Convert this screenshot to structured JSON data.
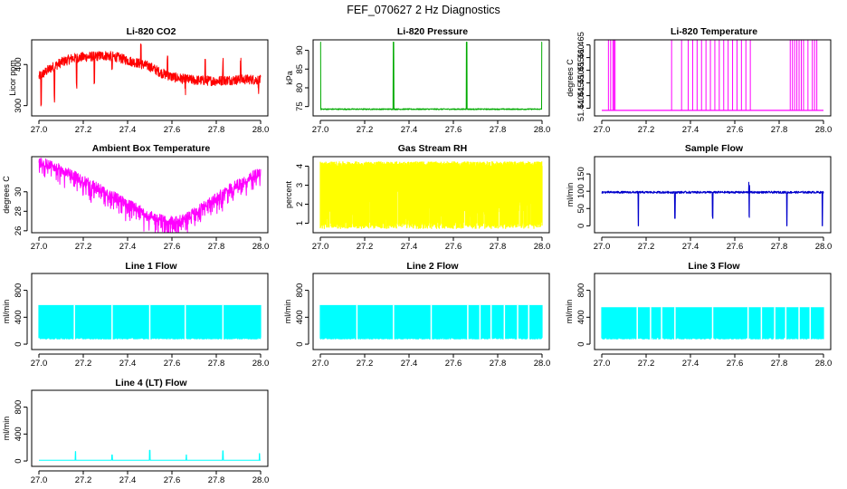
{
  "figure": {
    "title": "FEF_070627  2 Hz Diagnostics"
  },
  "chart_data": [
    {
      "id": "co2",
      "type": "line",
      "title": "Li-820 CO2",
      "ylabel": "Licor ppm",
      "color": "#ff0000",
      "xlim": [
        27.0,
        28.0
      ],
      "ylim": [
        275,
        460
      ],
      "x_ticks": [
        "27.0",
        "27.2",
        "27.4",
        "27.6",
        "27.8",
        "28.0"
      ],
      "y_ticks": [
        {
          "value": 300,
          "label": "300"
        },
        {
          "value": 400,
          "label": "400"
        }
      ],
      "series": [
        {
          "name": "CO2",
          "x": [
            27.0,
            27.05,
            27.1,
            27.15,
            27.2,
            27.25,
            27.3,
            27.35,
            27.4,
            27.45,
            27.5,
            27.55,
            27.6,
            27.65,
            27.7,
            27.75,
            27.8,
            27.85,
            27.9,
            27.95,
            28.0
          ],
          "y": [
            370,
            390,
            405,
            415,
            418,
            420,
            422,
            418,
            410,
            403,
            395,
            380,
            370,
            365,
            362,
            361,
            360,
            362,
            363,
            364,
            362
          ],
          "noise": 12,
          "spikes_up": [
            27.33,
            27.46,
            27.58,
            27.66,
            27.75,
            27.83,
            27.91,
            27.99
          ],
          "spikes_down": [
            27.01,
            27.07,
            27.17,
            27.25,
            27.33,
            27.66,
            27.99
          ]
        }
      ]
    },
    {
      "id": "pressure",
      "type": "line",
      "title": "Li-820 Pressure",
      "ylabel": "kPa",
      "color": "#00aa00",
      "xlim": [
        27.0,
        28.0
      ],
      "ylim": [
        72.5,
        92.8
      ],
      "x_ticks": [
        "27.0",
        "27.2",
        "27.4",
        "27.6",
        "27.8",
        "28.0"
      ],
      "y_ticks": [
        {
          "value": 75,
          "label": "75"
        },
        {
          "value": 80,
          "label": "80"
        },
        {
          "value": 85,
          "label": "85"
        },
        {
          "value": 90,
          "label": "90"
        }
      ],
      "series": [
        {
          "name": "Pressure",
          "x": [
            27.0,
            28.0
          ],
          "y": [
            74.3,
            74.3
          ],
          "noise": 0.15,
          "spikes_up": [
            27.0,
            27.33,
            27.66,
            28.0
          ],
          "spike_top": 92.2
        }
      ]
    },
    {
      "id": "licor_temp",
      "type": "line",
      "title": "Li-820 Temperature",
      "ylabel": "degrees C",
      "color": "#ff00ff",
      "xlim": [
        27.0,
        28.0
      ],
      "ylim": [
        51.437,
        51.467
      ],
      "x_ticks": [
        "27.0",
        "27.2",
        "27.4",
        "27.6",
        "27.8",
        "28.0"
      ],
      "y_ticks": [
        {
          "value": 51.44,
          "label": "51.440"
        },
        {
          "value": 51.445,
          "label": "51.445"
        },
        {
          "value": 51.45,
          "label": "51.450"
        },
        {
          "value": 51.455,
          "label": "51.455"
        },
        {
          "value": 51.46,
          "label": "51.460"
        },
        {
          "value": 51.465,
          "label": "51.465"
        }
      ],
      "series": [
        {
          "name": "Temperature",
          "x": [
            27.0,
            28.0
          ],
          "y": [
            51.4392,
            51.4392
          ],
          "noise": 0,
          "toggles": [
            27.03,
            27.04,
            27.05,
            27.055,
            27.06,
            27.315,
            27.36,
            27.39,
            27.41,
            27.43,
            27.45,
            27.47,
            27.49,
            27.51,
            27.53,
            27.55,
            27.57,
            27.59,
            27.61,
            27.63,
            27.65,
            27.67,
            27.85,
            27.86,
            27.87,
            27.88,
            27.89,
            27.9,
            27.91,
            27.93,
            27.95,
            27.96,
            27.97
          ],
          "toggle_top": 51.467
        }
      ]
    },
    {
      "id": "box_temp",
      "type": "line",
      "title": "Ambient Box Temperature",
      "ylabel": "degrees C",
      "color": "#ff00ff",
      "xlim": [
        27.0,
        28.0
      ],
      "ylim": [
        25.8,
        33.6
      ],
      "x_ticks": [
        "27.0",
        "27.2",
        "27.4",
        "27.6",
        "27.8",
        "28.0"
      ],
      "y_ticks": [
        {
          "value": 26,
          "label": "26"
        },
        {
          "value": 28,
          "label": "28"
        },
        {
          "value": 30,
          "label": "30"
        }
      ],
      "series": [
        {
          "name": "Box Temperature",
          "x": [
            27.0,
            27.05,
            27.1,
            27.15,
            27.2,
            27.25,
            27.3,
            27.35,
            27.4,
            27.45,
            27.5,
            27.55,
            27.6,
            27.65,
            27.7,
            27.75,
            27.8,
            27.85,
            27.9,
            27.95,
            28.0
          ],
          "y": [
            33.0,
            32.8,
            32.3,
            31.8,
            31.2,
            30.6,
            30.0,
            29.4,
            28.8,
            28.2,
            27.6,
            27.2,
            27.0,
            27.2,
            27.9,
            28.6,
            29.4,
            30.2,
            30.9,
            31.5,
            32.0
          ],
          "noise": 0.5,
          "dips": 1.5
        }
      ]
    },
    {
      "id": "rh",
      "type": "line",
      "title": "Gas Stream RH",
      "ylabel": "percent",
      "color": "#ffff00",
      "xlim": [
        27.0,
        28.0
      ],
      "ylim": [
        0.5,
        4.5
      ],
      "x_ticks": [
        "27.0",
        "27.2",
        "27.4",
        "27.6",
        "27.8",
        "28.0"
      ],
      "y_ticks": [
        {
          "value": 1,
          "label": "1"
        },
        {
          "value": 2,
          "label": "2"
        },
        {
          "value": 3,
          "label": "3"
        },
        {
          "value": 4,
          "label": "4"
        }
      ],
      "series": [
        {
          "name": "RH",
          "x": [
            27.0,
            28.0
          ],
          "y": [
            4.1,
            4.1
          ],
          "noise": 0.15,
          "band_low": 0.7
        }
      ]
    },
    {
      "id": "sample_flow",
      "type": "line",
      "title": "Sample Flow",
      "ylabel": "ml/min",
      "color": "#0000cc",
      "xlim": [
        27.0,
        28.0
      ],
      "ylim": [
        -20,
        200
      ],
      "x_ticks": [
        "27.0",
        "27.2",
        "27.4",
        "27.6",
        "27.8",
        "28.0"
      ],
      "y_ticks": [
        {
          "value": 0,
          "label": "0"
        },
        {
          "value": 50,
          "label": "50"
        },
        {
          "value": 100,
          "label": "100"
        },
        {
          "value": 150,
          "label": "150"
        }
      ],
      "series": [
        {
          "name": "Sample Flow",
          "x": [
            27.0,
            28.0
          ],
          "y": [
            97,
            97
          ],
          "noise": 3,
          "drops": [
            27.165,
            27.33,
            27.5,
            27.665,
            27.835,
            27.995
          ],
          "drop_low": 0,
          "blips": [
            27.33,
            27.5,
            27.665
          ]
        }
      ]
    },
    {
      "id": "line1",
      "type": "line",
      "title": "Line 1 Flow",
      "ylabel": "ml/min",
      "color": "#00ffff",
      "xlim": [
        27.0,
        28.0
      ],
      "ylim": [
        -80,
        1050
      ],
      "x_ticks": [
        "27.0",
        "27.2",
        "27.4",
        "27.6",
        "27.8",
        "28.0"
      ],
      "y_ticks": [
        {
          "value": 0,
          "label": "0"
        },
        {
          "value": 400,
          "label": "400"
        },
        {
          "value": 800,
          "label": "800"
        }
      ],
      "series": [
        {
          "name": "Line 1 Flow",
          "x": [
            27.0,
            28.0
          ],
          "y": [
            580,
            580
          ],
          "band_low": 70,
          "gaps": [
            27.16,
            27.33,
            27.5,
            27.66,
            27.83
          ]
        }
      ]
    },
    {
      "id": "line2",
      "type": "line",
      "title": "Line 2 Flow",
      "ylabel": "ml/min",
      "color": "#00ffff",
      "xlim": [
        27.0,
        28.0
      ],
      "ylim": [
        -80,
        1050
      ],
      "x_ticks": [
        "27.0",
        "27.2",
        "27.4",
        "27.6",
        "27.8",
        "28.0"
      ],
      "y_ticks": [
        {
          "value": 0,
          "label": "0"
        },
        {
          "value": 400,
          "label": "400"
        },
        {
          "value": 800,
          "label": "800"
        }
      ],
      "series": [
        {
          "name": "Line 2 Flow",
          "x": [
            27.0,
            28.0
          ],
          "y": [
            580,
            580
          ],
          "band_low": 70,
          "gaps": [
            27.165,
            27.33,
            27.5,
            27.665,
            27.72,
            27.77,
            27.83,
            27.89,
            27.94
          ]
        }
      ]
    },
    {
      "id": "line3",
      "type": "line",
      "title": "Line 3 Flow",
      "ylabel": "ml/min",
      "color": "#00ffff",
      "xlim": [
        27.0,
        28.0
      ],
      "ylim": [
        -80,
        1050
      ],
      "x_ticks": [
        "27.0",
        "27.2",
        "27.4",
        "27.6",
        "27.8",
        "28.0"
      ],
      "y_ticks": [
        {
          "value": 0,
          "label": "0"
        },
        {
          "value": 400,
          "label": "400"
        },
        {
          "value": 800,
          "label": "800"
        }
      ],
      "series": [
        {
          "name": "Line 3 Flow",
          "x": [
            27.0,
            28.0
          ],
          "y": [
            550,
            550
          ],
          "band_low": 70,
          "gaps": [
            27.16,
            27.22,
            27.27,
            27.33,
            27.5,
            27.66,
            27.72,
            27.78,
            27.83,
            27.89,
            27.94
          ]
        }
      ]
    },
    {
      "id": "line4",
      "type": "line",
      "title": "Line 4 (LT) Flow",
      "ylabel": "ml/min",
      "color": "#00ffff",
      "xlim": [
        27.0,
        28.0
      ],
      "ylim": [
        -80,
        1050
      ],
      "x_ticks": [
        "27.0",
        "27.2",
        "27.4",
        "27.6",
        "27.8",
        "28.0"
      ],
      "y_ticks": [
        {
          "value": 0,
          "label": "0"
        },
        {
          "value": 400,
          "label": "400"
        },
        {
          "value": 800,
          "label": "800"
        }
      ],
      "series": [
        {
          "name": "Line 4 Flow",
          "x": [
            27.0,
            28.0
          ],
          "y": [
            10,
            10
          ],
          "spikes_up": [
            27.165,
            27.33,
            27.5,
            27.665,
            27.83,
            27.995
          ],
          "spike_heights": [
            140,
            90,
            160,
            90,
            150,
            110
          ]
        }
      ]
    }
  ]
}
